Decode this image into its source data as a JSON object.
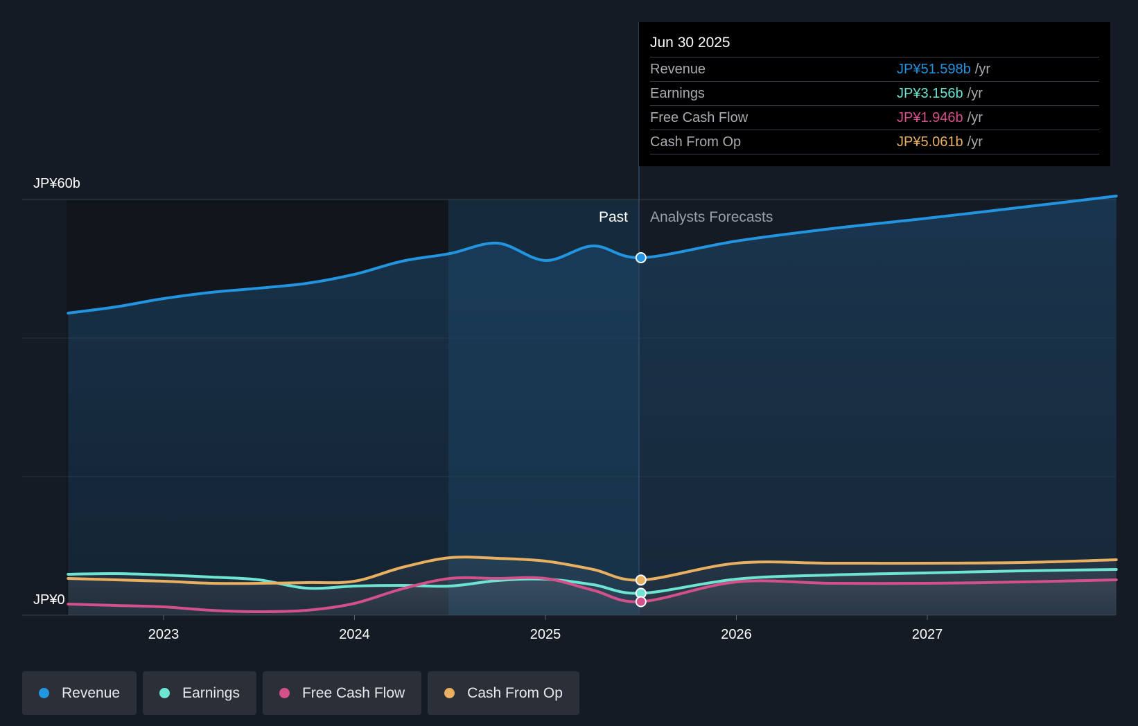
{
  "chart_data": {
    "type": "line",
    "title": "",
    "y_axis": {
      "max_label": "JP¥60b",
      "min_label": "JP¥0",
      "ylim": [
        0,
        60
      ]
    },
    "x_axis": {
      "ticks": [
        "2023",
        "2024",
        "2025",
        "2026",
        "2027"
      ]
    },
    "divider": {
      "date": "Jun 30 2025",
      "past_label": "Past",
      "forecast_label": "Analysts Forecasts"
    },
    "series": [
      {
        "name": "Revenue",
        "color": "#2394df",
        "points": [
          [
            2022.5,
            43.6
          ],
          [
            2022.75,
            44.5
          ],
          [
            2023.0,
            45.7
          ],
          [
            2023.25,
            46.6
          ],
          [
            2023.5,
            47.2
          ],
          [
            2023.75,
            47.9
          ],
          [
            2024.0,
            49.2
          ],
          [
            2024.25,
            51.1
          ],
          [
            2024.5,
            52.2
          ],
          [
            2024.75,
            53.7
          ],
          [
            2025.0,
            51.2
          ],
          [
            2025.25,
            53.3
          ],
          [
            2025.5,
            51.6
          ],
          [
            2026.0,
            54.0
          ],
          [
            2026.5,
            55.8
          ],
          [
            2027.0,
            57.3
          ],
          [
            2027.5,
            58.9
          ],
          [
            2027.99,
            60.5
          ]
        ]
      },
      {
        "name": "Earnings",
        "color": "#6ee4d2",
        "points": [
          [
            2022.5,
            5.9
          ],
          [
            2022.75,
            6.0
          ],
          [
            2023.0,
            5.8
          ],
          [
            2023.25,
            5.5
          ],
          [
            2023.5,
            5.1
          ],
          [
            2023.75,
            3.9
          ],
          [
            2024.0,
            4.2
          ],
          [
            2024.25,
            4.3
          ],
          [
            2024.5,
            4.2
          ],
          [
            2024.75,
            5.0
          ],
          [
            2025.0,
            5.2
          ],
          [
            2025.25,
            4.4
          ],
          [
            2025.5,
            3.16
          ],
          [
            2026.0,
            5.2
          ],
          [
            2026.5,
            5.8
          ],
          [
            2027.0,
            6.1
          ],
          [
            2027.5,
            6.4
          ],
          [
            2027.99,
            6.6
          ]
        ]
      },
      {
        "name": "Free Cash Flow",
        "color": "#d4508a",
        "points": [
          [
            2022.5,
            1.6
          ],
          [
            2022.75,
            1.4
          ],
          [
            2023.0,
            1.2
          ],
          [
            2023.25,
            0.7
          ],
          [
            2023.5,
            0.5
          ],
          [
            2023.75,
            0.7
          ],
          [
            2024.0,
            1.7
          ],
          [
            2024.25,
            3.8
          ],
          [
            2024.5,
            5.3
          ],
          [
            2024.75,
            5.3
          ],
          [
            2025.0,
            5.3
          ],
          [
            2025.25,
            3.6
          ],
          [
            2025.5,
            1.95
          ],
          [
            2026.0,
            4.8
          ],
          [
            2026.5,
            4.6
          ],
          [
            2027.0,
            4.6
          ],
          [
            2027.5,
            4.8
          ],
          [
            2027.99,
            5.1
          ]
        ]
      },
      {
        "name": "Cash From Op",
        "color": "#e8b060",
        "points": [
          [
            2022.5,
            5.3
          ],
          [
            2022.75,
            5.1
          ],
          [
            2023.0,
            4.9
          ],
          [
            2023.25,
            4.6
          ],
          [
            2023.5,
            4.6
          ],
          [
            2023.75,
            4.7
          ],
          [
            2024.0,
            4.9
          ],
          [
            2024.25,
            6.9
          ],
          [
            2024.5,
            8.3
          ],
          [
            2024.75,
            8.2
          ],
          [
            2025.0,
            7.8
          ],
          [
            2025.25,
            6.6
          ],
          [
            2025.5,
            5.06
          ],
          [
            2026.0,
            7.5
          ],
          [
            2026.5,
            7.5
          ],
          [
            2027.0,
            7.5
          ],
          [
            2027.5,
            7.6
          ],
          [
            2027.99,
            8.0
          ]
        ]
      }
    ]
  },
  "tooltip": {
    "date": "Jun 30 2025",
    "rows": [
      {
        "label": "Revenue",
        "value": "JP¥51.598b",
        "unit": "/yr",
        "color": "#2394df"
      },
      {
        "label": "Earnings",
        "value": "JP¥3.156b",
        "unit": "/yr",
        "color": "#6ee4d2"
      },
      {
        "label": "Free Cash Flow",
        "value": "JP¥1.946b",
        "unit": "/yr",
        "color": "#d4508a"
      },
      {
        "label": "Cash From Op",
        "value": "JP¥5.061b",
        "unit": "/yr",
        "color": "#e8b060"
      }
    ]
  },
  "legend": [
    {
      "label": "Revenue",
      "color": "#2394df"
    },
    {
      "label": "Earnings",
      "color": "#6ee4d2"
    },
    {
      "label": "Free Cash Flow",
      "color": "#d4508a"
    },
    {
      "label": "Cash From Op",
      "color": "#e8b060"
    }
  ]
}
